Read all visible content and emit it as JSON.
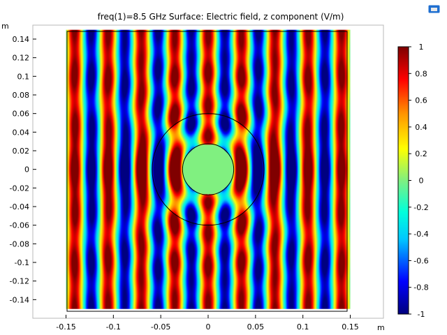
{
  "window": {
    "title": "freq(1)=8.5 GHz   Surface: Electric field, z component (V/m)"
  },
  "icons": {
    "toolbar": "plot-settings-icon"
  },
  "chart_data": {
    "type": "heatmap",
    "title": "freq(1)=8.5 GHz   Surface: Electric field, z component (V/m)",
    "x_unit": "m",
    "y_unit": "m",
    "xlim": [
      -0.185,
      0.185
    ],
    "ylim": [
      -0.16,
      0.155
    ],
    "domain": {
      "x": [
        -0.15,
        0.15
      ],
      "y": [
        -0.15,
        0.15
      ]
    },
    "x_ticks": [
      "-0.15",
      "-0.1",
      "-0.05",
      "0",
      "0.05",
      "0.1",
      "0.15"
    ],
    "x_tick_values": [
      -0.15,
      -0.1,
      -0.05,
      0,
      0.05,
      0.1,
      0.15
    ],
    "y_ticks": [
      "0.14",
      "0.12",
      "0.1",
      "0.08",
      "0.06",
      "0.04",
      "0.02",
      "0",
      "-0.02",
      "-0.04",
      "-0.06",
      "-0.08",
      "-0.1",
      "-0.12",
      "-0.14"
    ],
    "y_tick_values": [
      0.14,
      0.12,
      0.1,
      0.08,
      0.06,
      0.04,
      0.02,
      0,
      -0.02,
      -0.04,
      -0.06,
      -0.08,
      -0.1,
      -0.12,
      -0.14
    ],
    "field": {
      "frequency_ghz": 8.5,
      "wavelength_m": 0.0353,
      "propagation": "x",
      "scatterer_radius_m": 0.027,
      "outer_circle_radius_m": 0.059,
      "scatterer_value": 0
    },
    "colorbar": {
      "min": -1,
      "max": 1,
      "colormap": "rainbow",
      "labels": [
        "1",
        "0.8",
        "0.6",
        "0.4",
        "0.2",
        "0",
        "-0.2",
        "-0.4",
        "-0.6",
        "-0.8",
        "-1"
      ],
      "values": [
        1,
        0.8,
        0.6,
        0.4,
        0.2,
        0,
        -0.2,
        -0.4,
        -0.6,
        -0.8,
        -1
      ]
    },
    "grid": false,
    "legend": "right"
  }
}
